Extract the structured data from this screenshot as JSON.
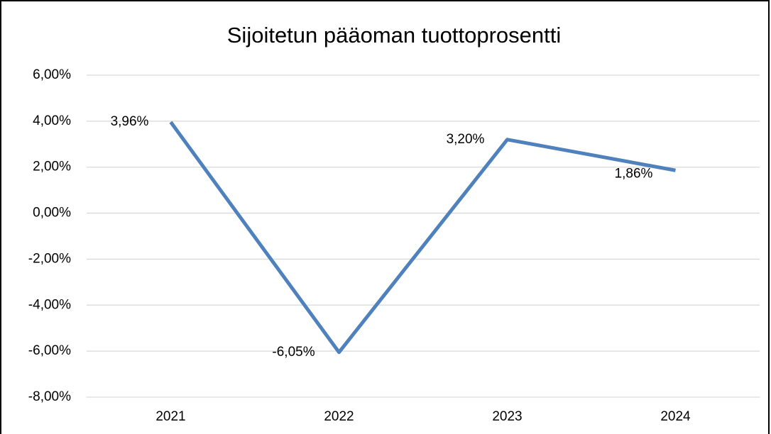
{
  "chart_data": {
    "type": "line",
    "title": "Sijoitetun pääoman tuottoprosentti",
    "categories": [
      "2021",
      "2022",
      "2023",
      "2024"
    ],
    "series": [
      {
        "name": "Sijoitetun pääoman tuottoprosentti",
        "color": "#4f81bd",
        "values": [
          3.96,
          -6.05,
          3.2,
          1.86
        ],
        "value_labels": [
          "3,96%",
          "-6,05%",
          "3,20%",
          "1,86%"
        ]
      }
    ],
    "ylim": [
      -8,
      6
    ],
    "yticks": [
      {
        "value": -8,
        "label": "-8,00%"
      },
      {
        "value": -6,
        "label": "-6,00%"
      },
      {
        "value": -4,
        "label": "-4,00%"
      },
      {
        "value": -2,
        "label": "-2,00%"
      },
      {
        "value": 0,
        "label": "0,00%"
      },
      {
        "value": 2,
        "label": "2,00%"
      },
      {
        "value": 4,
        "label": "4,00%"
      },
      {
        "value": 6,
        "label": "6,00%"
      }
    ],
    "grid": true
  }
}
